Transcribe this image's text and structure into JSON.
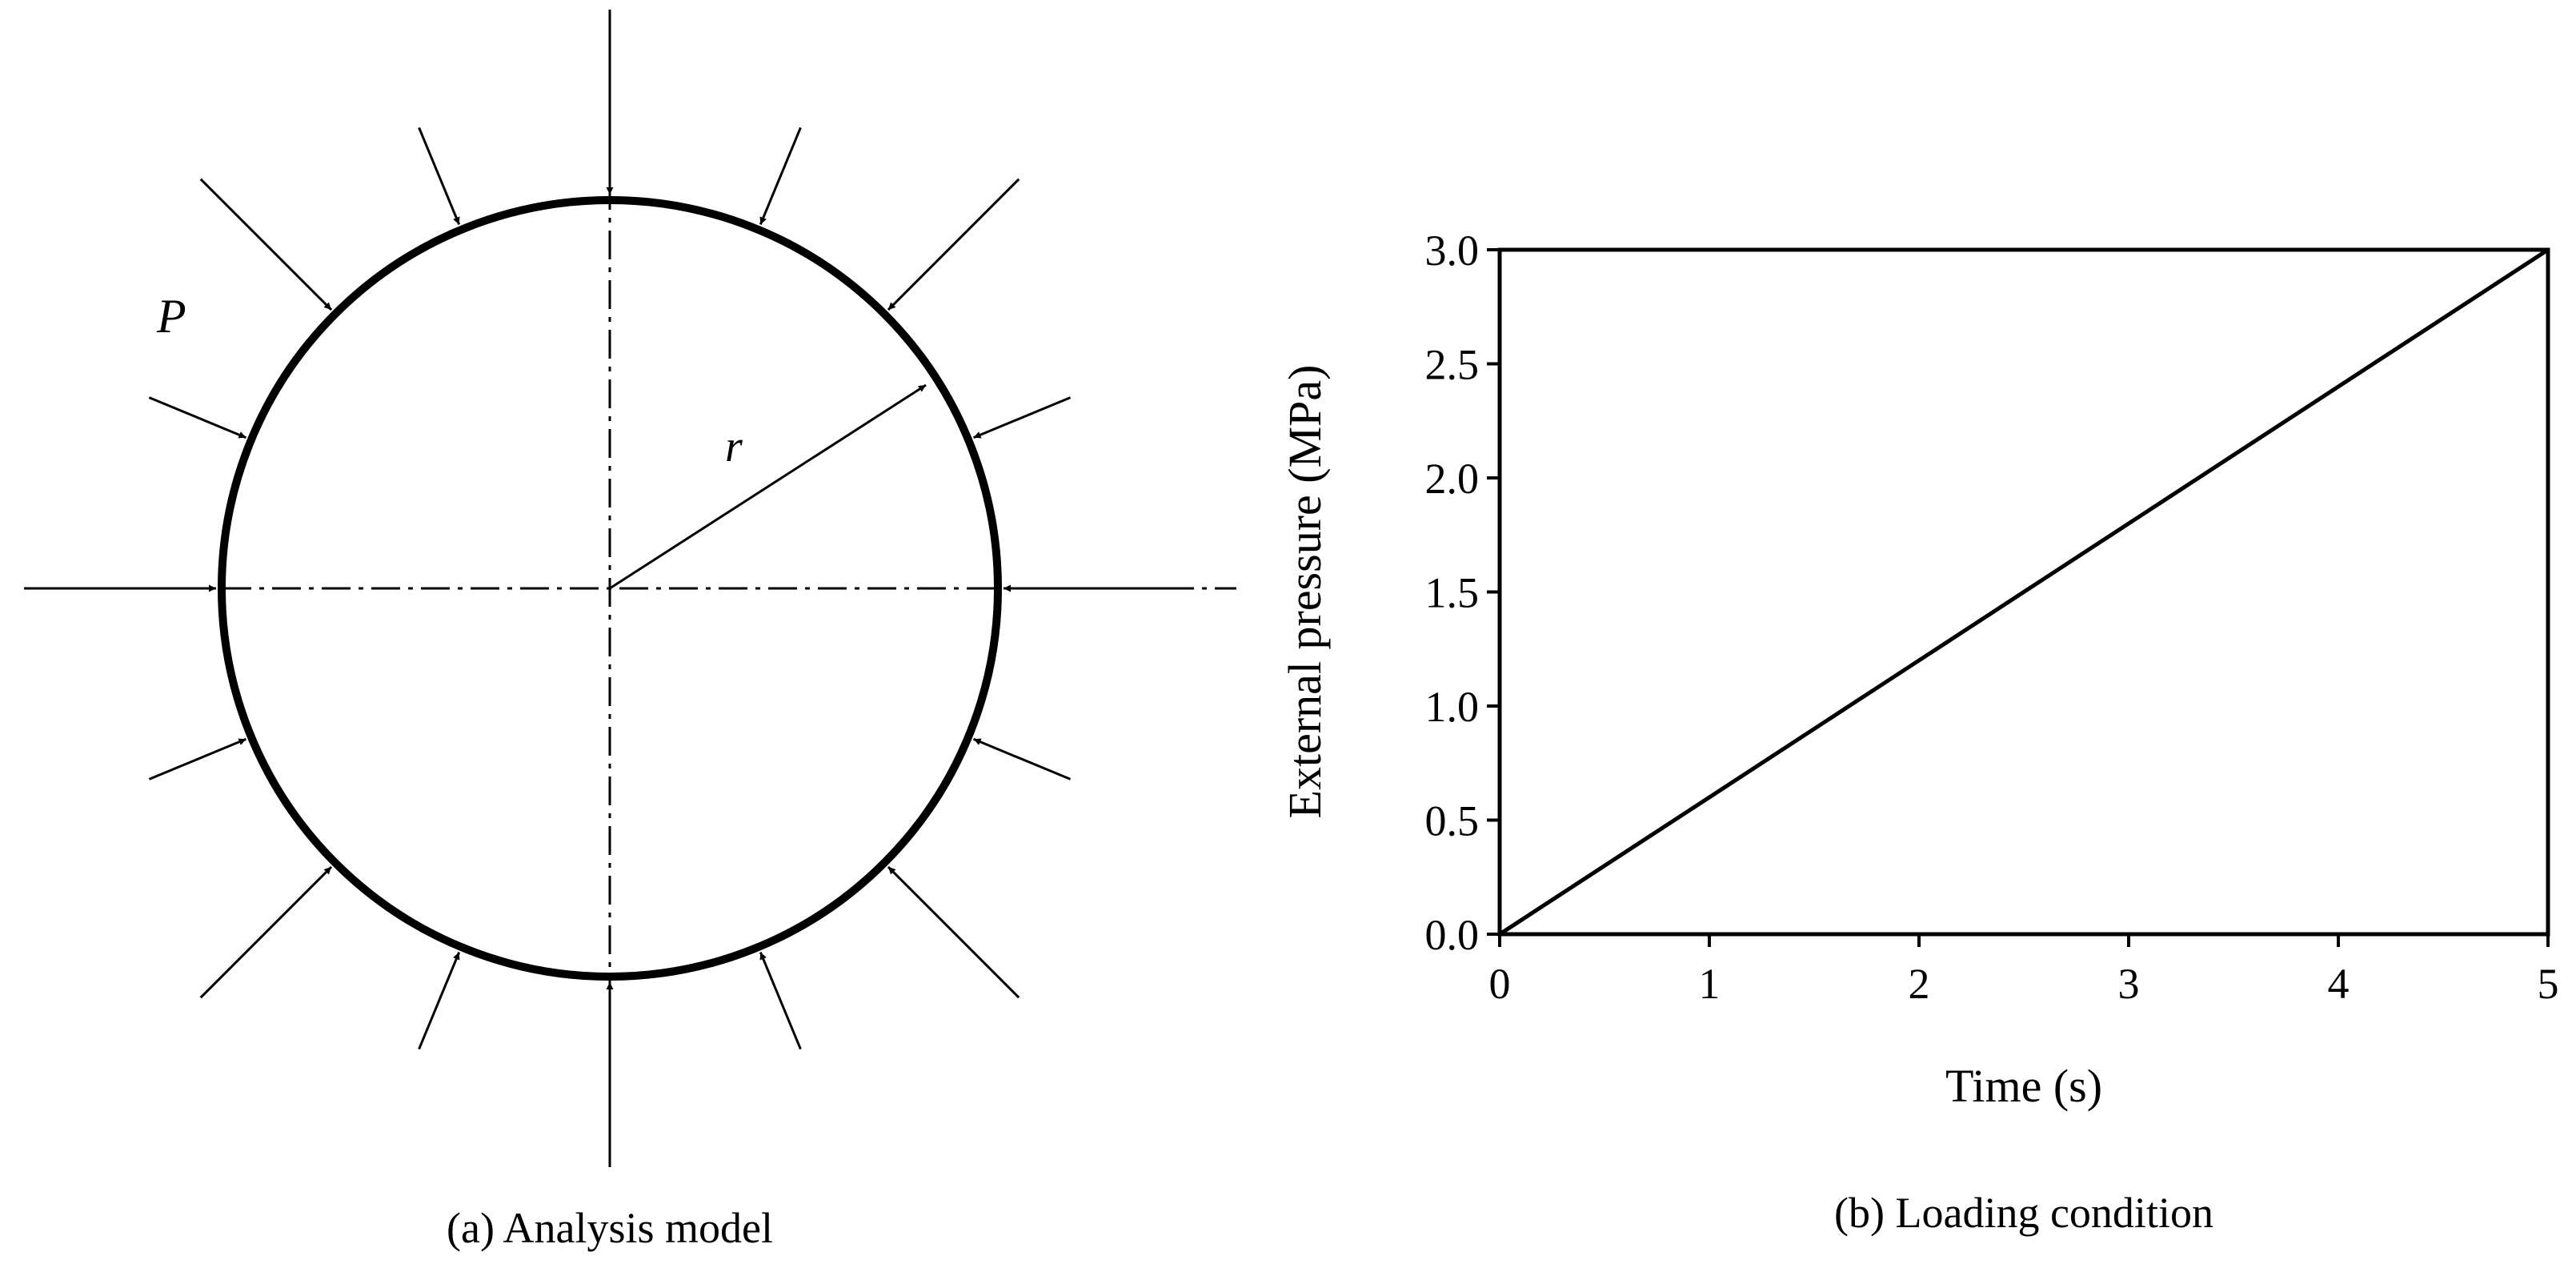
{
  "panel_a": {
    "caption": "(a) Analysis model",
    "pressure_label": "P",
    "radius_label": "r",
    "arrow_count": 16
  },
  "panel_b": {
    "caption": "(b) Loading condition"
  },
  "chart_data": {
    "type": "line",
    "title": "",
    "xlabel": "Time (s)",
    "ylabel": "External pressure (MPa)",
    "xlim": [
      0,
      5
    ],
    "ylim": [
      0,
      3.0
    ],
    "xticks": [
      "0",
      "1",
      "2",
      "3",
      "4",
      "5"
    ],
    "yticks": [
      "0.0",
      "0.5",
      "1.0",
      "1.5",
      "2.0",
      "2.5",
      "3.0"
    ],
    "grid": false,
    "series": [
      {
        "x": [
          0,
          5
        ],
        "y": [
          0.0,
          3.0
        ]
      }
    ]
  },
  "colors": {
    "line": "#000000",
    "background": "#ffffff"
  }
}
